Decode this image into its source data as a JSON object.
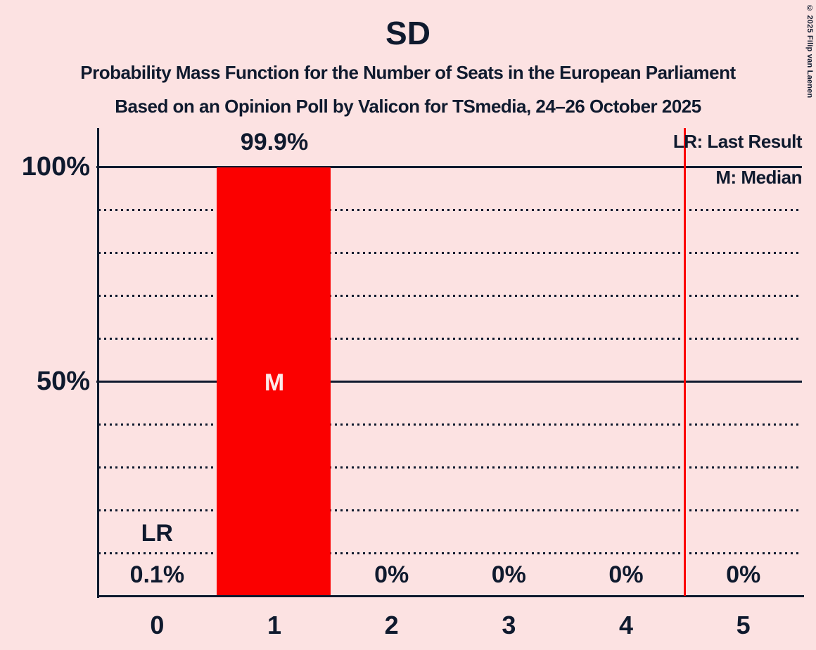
{
  "title": "SD",
  "subtitles": [
    "Probability Mass Function for the Number of Seats in the European Parliament",
    "Based on an Opinion Poll by Valicon for TSmedia, 24–26 October 2025"
  ],
  "legend": {
    "last_result": "LR: Last Result",
    "median": "M: Median"
  },
  "copyright": "© 2025 Filip van Laenen",
  "colors": {
    "background": "#fce2e2",
    "text": "#0f1a2e",
    "bar": "#fb0000",
    "last_result_line": "#fb0000",
    "bar_inner_text": "#fce9e9"
  },
  "chart_data": {
    "type": "bar",
    "title": "SD",
    "categories": [
      "0",
      "1",
      "2",
      "3",
      "4",
      "5"
    ],
    "values": [
      0.1,
      99.9,
      0,
      0,
      0,
      0
    ],
    "bar_labels": [
      "0.1%",
      "99.9%",
      "0%",
      "0%",
      "0%",
      "0%"
    ],
    "y_ticks": [
      {
        "label": "100%",
        "value": 100
      },
      {
        "label": "50%",
        "value": 50
      }
    ],
    "ylim": [
      0,
      100
    ],
    "grid_step_percent": 10,
    "solid_grid_values": [
      50,
      100
    ],
    "median_annotation": {
      "label": "M",
      "column": 1
    },
    "last_result_annotation": {
      "label": "LR",
      "column": 0
    },
    "last_result_line_x": 4.5,
    "xlabel": "",
    "ylabel": "",
    "legend_position": "top-right",
    "grid": "dotted-horizontal"
  }
}
